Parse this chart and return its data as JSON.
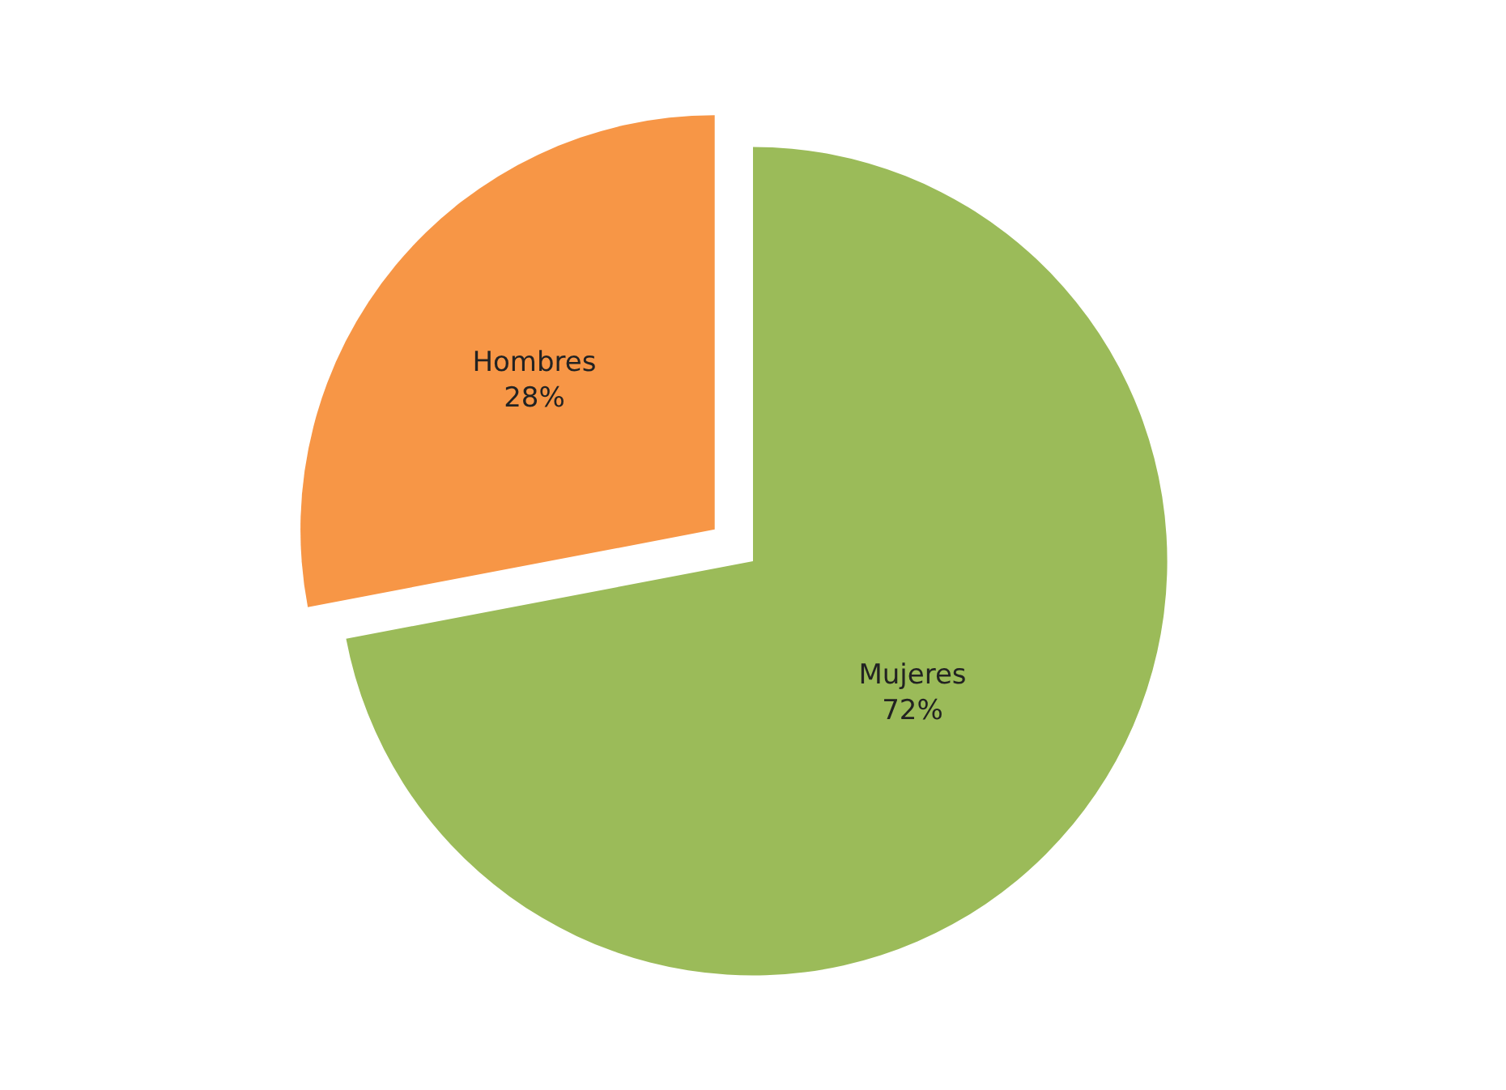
{
  "chart_data": {
    "type": "pie",
    "categories": [
      "Mujeres",
      "Hombres"
    ],
    "values": [
      72,
      28
    ],
    "colors": [
      "#9bbb59",
      "#f79646"
    ],
    "value_labels": [
      "72%",
      "28%"
    ],
    "legend": false
  }
}
